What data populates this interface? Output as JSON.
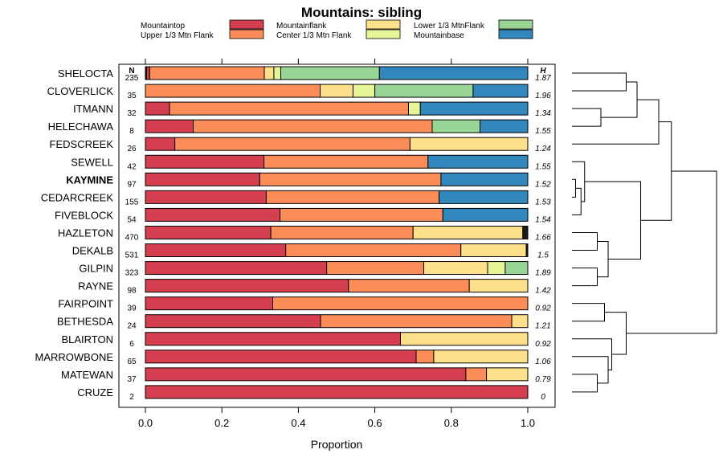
{
  "chart_data": {
    "type": "bar",
    "stacked": true,
    "orientation": "horizontal",
    "title": "Mountains: sibling",
    "xlabel": "Proportion",
    "xlim": [
      0,
      1
    ],
    "xticks": [
      "0.0",
      "0.2",
      "0.4",
      "0.6",
      "0.8",
      "1.0"
    ],
    "n_header": "N",
    "h_header": "H",
    "highlight_row": "KAYMINE",
    "legend": [
      {
        "label": "Mountaintop",
        "color": "#D53E4F"
      },
      {
        "label": "Upper 1/3 Mtn Flank",
        "color": "#FC8D59"
      },
      {
        "label": "Mountainflank",
        "color": "#FEE08B"
      },
      {
        "label": "Center 1/3 Mtn Flank",
        "color": "#E6F598"
      },
      {
        "label": "Lower 1/3 MtnFlank",
        "color": "#99D594"
      },
      {
        "label": "Mountainbase",
        "color": "#3288BD"
      }
    ],
    "rows": [
      {
        "name": "SHELOCTA",
        "n": "235",
        "h": "1.87",
        "segments": [
          {
            "color": "#1a1a1a",
            "value": 0.003
          },
          {
            "color": "#D53E4F",
            "value": 0.008
          },
          {
            "color": "#FC8D59",
            "value": 0.3
          },
          {
            "color": "#FEE08B",
            "value": 0.025
          },
          {
            "color": "#E6F598",
            "value": 0.018
          },
          {
            "color": "#99D594",
            "value": 0.258
          },
          {
            "color": "#3288BD",
            "value": 0.388
          }
        ]
      },
      {
        "name": "CLOVERLICK",
        "n": "35",
        "h": "1.96",
        "segments": [
          {
            "color": "#FC8D59",
            "value": 0.457
          },
          {
            "color": "#FEE08B",
            "value": 0.086
          },
          {
            "color": "#E6F598",
            "value": 0.057
          },
          {
            "color": "#99D594",
            "value": 0.257
          },
          {
            "color": "#3288BD",
            "value": 0.143
          }
        ]
      },
      {
        "name": "ITMANN",
        "n": "32",
        "h": "1.34",
        "segments": [
          {
            "color": "#D53E4F",
            "value": 0.063
          },
          {
            "color": "#FC8D59",
            "value": 0.625
          },
          {
            "color": "#E6F598",
            "value": 0.031
          },
          {
            "color": "#3288BD",
            "value": 0.281
          }
        ]
      },
      {
        "name": "HELECHAWA",
        "n": "8",
        "h": "1.55",
        "segments": [
          {
            "color": "#D53E4F",
            "value": 0.125
          },
          {
            "color": "#FC8D59",
            "value": 0.625
          },
          {
            "color": "#99D594",
            "value": 0.125
          },
          {
            "color": "#3288BD",
            "value": 0.125
          }
        ]
      },
      {
        "name": "FEDSCREEK",
        "n": "26",
        "h": "1.24",
        "segments": [
          {
            "color": "#D53E4F",
            "value": 0.077
          },
          {
            "color": "#FC8D59",
            "value": 0.615
          },
          {
            "color": "#FEE08B",
            "value": 0.308
          }
        ]
      },
      {
        "name": "SEWELL",
        "n": "42",
        "h": "1.55",
        "segments": [
          {
            "color": "#D53E4F",
            "value": 0.31
          },
          {
            "color": "#FC8D59",
            "value": 0.429
          },
          {
            "color": "#3288BD",
            "value": 0.261
          }
        ]
      },
      {
        "name": "KAYMINE",
        "n": "97",
        "h": "1.52",
        "segments": [
          {
            "color": "#D53E4F",
            "value": 0.299
          },
          {
            "color": "#FC8D59",
            "value": 0.474
          },
          {
            "color": "#3288BD",
            "value": 0.227
          }
        ]
      },
      {
        "name": "CEDARCREEK",
        "n": "155",
        "h": "1.53",
        "segments": [
          {
            "color": "#D53E4F",
            "value": 0.316
          },
          {
            "color": "#FC8D59",
            "value": 0.452
          },
          {
            "color": "#3288BD",
            "value": 0.232
          }
        ]
      },
      {
        "name": "FIVEBLOCK",
        "n": "54",
        "h": "1.54",
        "segments": [
          {
            "color": "#D53E4F",
            "value": 0.352
          },
          {
            "color": "#FC8D59",
            "value": 0.426
          },
          {
            "color": "#3288BD",
            "value": 0.222
          }
        ]
      },
      {
        "name": "HAZLETON",
        "n": "470",
        "h": "1.66",
        "segments": [
          {
            "color": "#D53E4F",
            "value": 0.328
          },
          {
            "color": "#FC8D59",
            "value": 0.372
          },
          {
            "color": "#FEE08B",
            "value": 0.287
          },
          {
            "color": "#1a1a1a",
            "value": 0.013
          }
        ]
      },
      {
        "name": "DEKALB",
        "n": "531",
        "h": "1.5",
        "segments": [
          {
            "color": "#D53E4F",
            "value": 0.367
          },
          {
            "color": "#FC8D59",
            "value": 0.458
          },
          {
            "color": "#FEE08B",
            "value": 0.171
          },
          {
            "color": "#1a1a1a",
            "value": 0.004
          }
        ]
      },
      {
        "name": "GILPIN",
        "n": "323",
        "h": "1.89",
        "segments": [
          {
            "color": "#D53E4F",
            "value": 0.474
          },
          {
            "color": "#FC8D59",
            "value": 0.254
          },
          {
            "color": "#FEE08B",
            "value": 0.167
          },
          {
            "color": "#E6F598",
            "value": 0.046
          },
          {
            "color": "#99D594",
            "value": 0.059
          }
        ]
      },
      {
        "name": "RAYNE",
        "n": "98",
        "h": "1.42",
        "segments": [
          {
            "color": "#D53E4F",
            "value": 0.531
          },
          {
            "color": "#FC8D59",
            "value": 0.316
          },
          {
            "color": "#FEE08B",
            "value": 0.153
          }
        ]
      },
      {
        "name": "FAIRPOINT",
        "n": "39",
        "h": "0.92",
        "segments": [
          {
            "color": "#D53E4F",
            "value": 0.333
          },
          {
            "color": "#FC8D59",
            "value": 0.667
          }
        ]
      },
      {
        "name": "BETHESDA",
        "n": "24",
        "h": "1.21",
        "segments": [
          {
            "color": "#D53E4F",
            "value": 0.458
          },
          {
            "color": "#FC8D59",
            "value": 0.5
          },
          {
            "color": "#FEE08B",
            "value": 0.042
          }
        ]
      },
      {
        "name": "BLAIRTON",
        "n": "6",
        "h": "0.92",
        "segments": [
          {
            "color": "#D53E4F",
            "value": 0.667
          },
          {
            "color": "#FEE08B",
            "value": 0.333
          }
        ]
      },
      {
        "name": "MARROWBONE",
        "n": "65",
        "h": "1.06",
        "segments": [
          {
            "color": "#D53E4F",
            "value": 0.708
          },
          {
            "color": "#FC8D59",
            "value": 0.046
          },
          {
            "color": "#FEE08B",
            "value": 0.246
          }
        ]
      },
      {
        "name": "MATEWAN",
        "n": "37",
        "h": "0.79",
        "segments": [
          {
            "color": "#D53E4F",
            "value": 0.838
          },
          {
            "color": "#FC8D59",
            "value": 0.054
          },
          {
            "color": "#FEE08B",
            "value": 0.108
          }
        ]
      },
      {
        "name": "CRUZE",
        "n": "2",
        "h": "0",
        "segments": [
          {
            "color": "#D53E4F",
            "value": 1.0
          }
        ]
      }
    ],
    "dendrogram": {
      "leaves_order": [
        "SHELOCTA",
        "CLOVERLICK",
        "ITMANN",
        "HELECHAWA",
        "FEDSCREEK",
        "SEWELL",
        "KAYMINE",
        "CEDARCREEK",
        "FIVEBLOCK",
        "HAZLETON",
        "DEKALB",
        "GILPIN",
        "RAYNE",
        "FAIRPOINT",
        "BETHESDA",
        "BLAIRTON",
        "MARROWBONE",
        "MATEWAN",
        "CRUZE"
      ],
      "merges": [
        [
          [
            0,
            0
          ],
          [
            0,
            1
          ],
          0.15
        ],
        [
          [
            0,
            2
          ],
          [
            0,
            3
          ],
          0.08
        ],
        [
          [
            1,
            0
          ],
          [
            1,
            1
          ],
          0.18
        ],
        [
          [
            1,
            2
          ],
          [
            0,
            4
          ],
          0.24
        ],
        [
          [
            0,
            6
          ],
          [
            0,
            7
          ],
          0.01
        ],
        [
          [
            1,
            4
          ],
          [
            0,
            8
          ],
          0.025
        ],
        [
          [
            0,
            5
          ],
          [
            1,
            5
          ],
          0.035
        ],
        [
          [
            0,
            9
          ],
          [
            0,
            10
          ],
          0.07
        ],
        [
          [
            0,
            11
          ],
          [
            0,
            12
          ],
          0.07
        ],
        [
          [
            1,
            7
          ],
          [
            1,
            8
          ],
          0.1
        ],
        [
          [
            1,
            6
          ],
          [
            1,
            9
          ],
          0.19
        ],
        [
          [
            1,
            3
          ],
          [
            1,
            10
          ],
          0.275
        ],
        [
          [
            0,
            13
          ],
          [
            0,
            14
          ],
          0.09
        ],
        [
          [
            0,
            17
          ],
          [
            0,
            18
          ],
          0.07
        ],
        [
          [
            0,
            16
          ],
          [
            1,
            13
          ],
          0.1
        ],
        [
          [
            0,
            15
          ],
          [
            1,
            14
          ],
          0.11
        ],
        [
          [
            1,
            12
          ],
          [
            1,
            15
          ],
          0.15
        ],
        [
          [
            1,
            11
          ],
          [
            1,
            16
          ],
          0.4
        ]
      ]
    }
  }
}
